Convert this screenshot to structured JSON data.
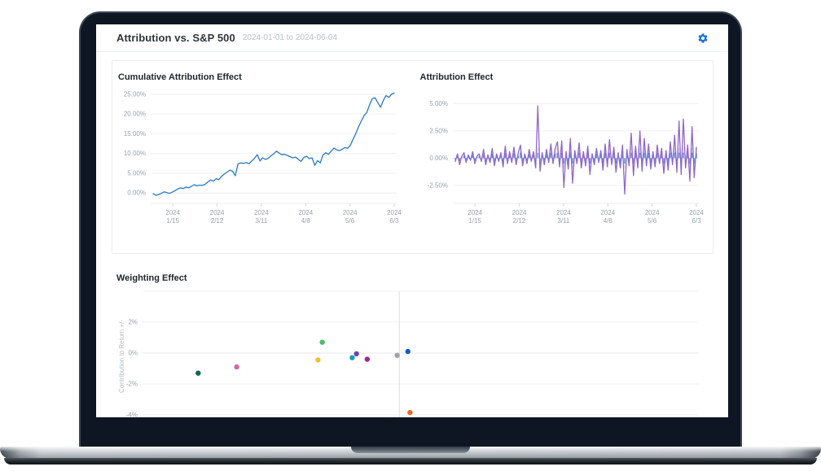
{
  "header": {
    "title": "Attribution vs. S&P 500",
    "date_range": "2024-01-01 to 2024-06-04",
    "settings_icon": "gear-icon",
    "settings_color": "#1e6ed8"
  },
  "colors": {
    "grid": "#f1f1f4",
    "zero_grid": "#e9e9ed",
    "axis_line": "#ececef",
    "tick_mark": "#d8d8dc",
    "axis_text": "#9aa0aa",
    "ylabel_text": "#b4bac2"
  },
  "chart_data": [
    {
      "type": "line",
      "title": "Cumulative Attribution Effect",
      "line_color": "#2879c9",
      "ylim": [
        -1.4,
        25.4
      ],
      "yticks": [
        {
          "v": 25,
          "label": "25.00%"
        },
        {
          "v": 20,
          "label": "20.00%"
        },
        {
          "v": 15,
          "label": "15.00%"
        },
        {
          "v": 10,
          "label": "10.00%"
        },
        {
          "v": 5,
          "label": "5.00%"
        },
        {
          "v": 0,
          "label": "0.00%"
        }
      ],
      "xticks": [
        {
          "f": 0.09,
          "year": "2024",
          "day": "1/15"
        },
        {
          "f": 0.27,
          "year": "2024",
          "day": "2/12"
        },
        {
          "f": 0.45,
          "year": "2024",
          "day": "3/11"
        },
        {
          "f": 0.63,
          "year": "2024",
          "day": "4/8"
        },
        {
          "f": 0.81,
          "year": "2024",
          "day": "5/6"
        },
        {
          "f": 0.99,
          "year": "2024",
          "day": "6/3"
        }
      ],
      "values": [
        -0.2,
        -0.6,
        -0.4,
        -0.1,
        0.3,
        0.1,
        -0.1,
        0.2,
        0.6,
        1.0,
        1.3,
        1.1,
        1.5,
        1.3,
        1.7,
        2.1,
        1.8,
        2.0,
        1.9,
        2.2,
        2.8,
        3.3,
        3.0,
        3.6,
        3.4,
        4.2,
        4.8,
        5.3,
        5.8,
        5.5,
        4.4,
        7.4,
        7.6,
        7.5,
        7.7,
        7.4,
        8.1,
        8.8,
        9.7,
        8.1,
        8.9,
        8.5,
        8.8,
        9.4,
        9.9,
        10.6,
        10.1,
        9.7,
        9.8,
        9.5,
        9.2,
        8.9,
        9.1,
        8.5,
        8.0,
        9.0,
        9.3,
        8.7,
        8.9,
        7.0,
        8.2,
        7.6,
        9.6,
        10.2,
        9.8,
        10.6,
        11.4,
        10.9,
        10.7,
        11.1,
        11.5,
        11.3,
        12.1,
        13.6,
        15.1,
        16.8,
        18.2,
        19.6,
        20.4,
        22.3,
        23.9,
        24.1,
        22.9,
        21.7,
        23.4,
        24.7,
        24.2,
        25.0,
        25.3
      ]
    },
    {
      "type": "line",
      "title": "Attribution Effect",
      "line_color": "#8f68c8",
      "bar_color": "#cdbfec",
      "tick_color": "#4b86d8",
      "has_bars": true,
      "ylim": [
        -3.7,
        6.0
      ],
      "yticks": [
        {
          "v": 5,
          "label": "5.00%"
        },
        {
          "v": 2.5,
          "label": "2.50%"
        },
        {
          "v": 0,
          "label": "0.00%"
        },
        {
          "v": -2.5,
          "label": "-2.50%"
        }
      ],
      "xticks": [
        {
          "f": 0.09,
          "year": "2024",
          "day": "1/15"
        },
        {
          "f": 0.27,
          "year": "2024",
          "day": "2/12"
        },
        {
          "f": 0.45,
          "year": "2024",
          "day": "3/11"
        },
        {
          "f": 0.63,
          "year": "2024",
          "day": "4/8"
        },
        {
          "f": 0.81,
          "year": "2024",
          "day": "5/6"
        },
        {
          "f": 0.99,
          "year": "2024",
          "day": "6/3"
        }
      ],
      "values": [
        -0.3,
        0.4,
        -0.6,
        0.2,
        0.5,
        -0.4,
        0.3,
        -0.2,
        0.6,
        -0.5,
        0.2,
        0.4,
        -0.3,
        0.8,
        -0.6,
        0.3,
        -0.4,
        0.9,
        -0.7,
        0.4,
        -0.3,
        0.5,
        -0.8,
        1.1,
        -0.5,
        0.6,
        -0.4,
        1.0,
        -0.6,
        0.5,
        1.2,
        -0.7,
        0.4,
        -0.5,
        0.8,
        -0.3,
        0.6,
        -0.9,
        4.8,
        -1.2,
        0.5,
        -0.6,
        0.8,
        -0.4,
        1.3,
        -0.5,
        0.9,
        1.5,
        -0.8,
        1.6,
        -2.7,
        0.6,
        -1.0,
        1.8,
        -2.3,
        0.7,
        -0.5,
        1.4,
        -0.9,
        0.6,
        -0.7,
        1.1,
        -1.5,
        0.4,
        -0.6,
        0.9,
        -0.4,
        0.7,
        -1.1,
        1.3,
        -0.8,
        1.7,
        -0.6,
        1.0,
        -1.3,
        0.5,
        -0.9,
        1.2,
        -3.3,
        0.8,
        -0.7,
        2.3,
        -1.6,
        1.1,
        -0.9,
        2.5,
        -1.2,
        1.8,
        -0.7,
        1.3,
        -1.0,
        0.6,
        -0.8,
        1.2,
        -0.5,
        0.9,
        -1.4,
        0.7,
        -1.1,
        1.5,
        -0.6,
        2.1,
        -1.3,
        3.4,
        -1.5,
        3.6,
        -0.9,
        1.2,
        -2.1,
        2.9,
        -1.8,
        1.0
      ]
    },
    {
      "type": "scatter",
      "title": "Weighting Effect",
      "ylabel": "Contribution to Return +/-",
      "ylim": [
        -4.79,
        4.0
      ],
      "xlim": [
        -6,
        7
      ],
      "zero_x_line": true,
      "yticks": [
        {
          "v": 2,
          "label": "2%"
        },
        {
          "v": 0,
          "label": "0%"
        },
        {
          "v": -2,
          "label": "-2%"
        },
        {
          "v": -4,
          "label": "-4%"
        }
      ],
      "points": [
        {
          "x": -4.7,
          "y": -1.3,
          "color": "#0e6b4e"
        },
        {
          "x": -3.8,
          "y": -0.9,
          "color": "#d4699c"
        },
        {
          "x": -1.9,
          "y": -0.45,
          "color": "#f2c12e"
        },
        {
          "x": -1.8,
          "y": 0.7,
          "color": "#4cbb6c"
        },
        {
          "x": -1.1,
          "y": -0.3,
          "color": "#1a9cba"
        },
        {
          "x": -1.0,
          "y": -0.05,
          "color": "#6f42ad"
        },
        {
          "x": -0.75,
          "y": -0.4,
          "color": "#a1278e"
        },
        {
          "x": -0.05,
          "y": -0.15,
          "color": "#9aa0a6"
        },
        {
          "x": 0.2,
          "y": 0.1,
          "color": "#155bc6"
        },
        {
          "x": 0.25,
          "y": -3.85,
          "color": "#f2661f"
        }
      ]
    }
  ]
}
